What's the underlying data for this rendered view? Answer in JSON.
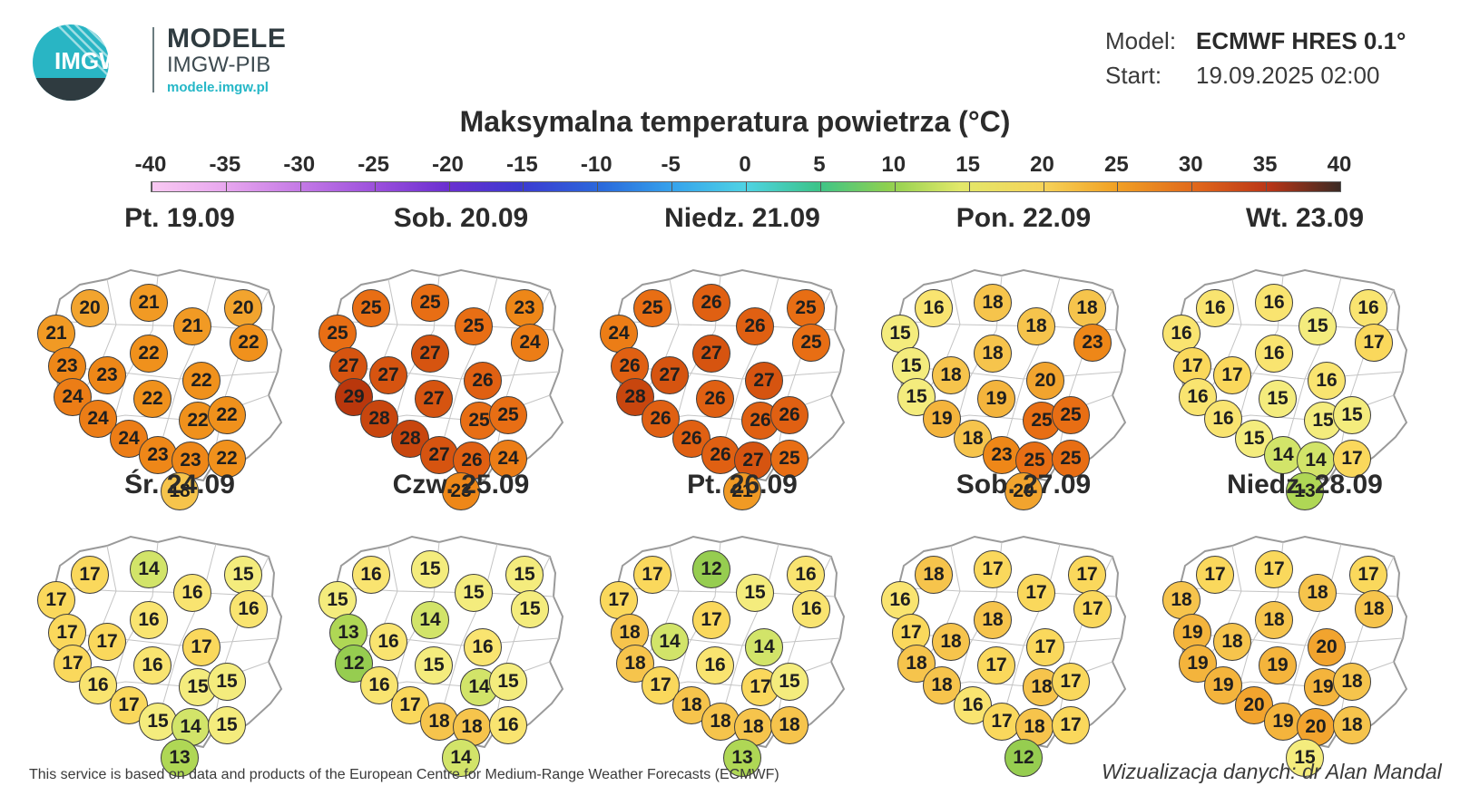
{
  "brand": {
    "logo_text": "IMGW",
    "name": "MODELE",
    "org": "IMGW-PIB",
    "url": "modele.imgw.pl"
  },
  "model_info": {
    "model_label": "Model:",
    "model_value": "ECMWF HRES 0.1°",
    "start_label": "Start:",
    "start_value": "19.09.2025 02:00"
  },
  "title": "Maksymalna temperatura powietrza (°C)",
  "scale": {
    "ticks": [
      "-40",
      "-35",
      "-30",
      "-25",
      "-20",
      "-15",
      "-10",
      "-5",
      "0",
      "5",
      "10",
      "15",
      "20",
      "25",
      "30",
      "35",
      "40"
    ]
  },
  "panels": [
    {
      "day": "Pt. 19.09",
      "values": [
        20,
        21,
        20,
        21,
        21,
        22,
        23,
        23,
        22,
        22,
        24,
        22,
        22,
        24,
        22,
        24,
        23,
        23,
        22,
        18
      ]
    },
    {
      "day": "Sob. 20.09",
      "values": [
        25,
        25,
        23,
        25,
        25,
        24,
        27,
        27,
        27,
        26,
        29,
        27,
        25,
        28,
        25,
        28,
        27,
        26,
        24,
        23
      ]
    },
    {
      "day": "Niedz. 21.09",
      "values": [
        25,
        26,
        25,
        24,
        26,
        25,
        26,
        27,
        27,
        27,
        28,
        26,
        26,
        26,
        26,
        26,
        26,
        27,
        25,
        21
      ]
    },
    {
      "day": "Pon. 22.09",
      "values": [
        16,
        18,
        18,
        15,
        18,
        23,
        15,
        18,
        18,
        20,
        15,
        19,
        25,
        19,
        25,
        18,
        23,
        25,
        25,
        20
      ]
    },
    {
      "day": "Wt. 23.09",
      "values": [
        16,
        16,
        16,
        16,
        15,
        17,
        17,
        17,
        16,
        16,
        16,
        15,
        15,
        16,
        15,
        15,
        14,
        14,
        17,
        13
      ]
    },
    {
      "day": "Śr. 24.09",
      "values": [
        17,
        14,
        15,
        17,
        16,
        16,
        17,
        17,
        16,
        17,
        17,
        16,
        15,
        16,
        15,
        17,
        15,
        14,
        15,
        13
      ]
    },
    {
      "day": "Czw. 25.09",
      "values": [
        16,
        15,
        15,
        15,
        15,
        15,
        13,
        16,
        14,
        16,
        12,
        15,
        14,
        16,
        15,
        17,
        18,
        18,
        16,
        14
      ]
    },
    {
      "day": "Pt. 26.09",
      "values": [
        17,
        12,
        16,
        17,
        15,
        16,
        18,
        14,
        17,
        14,
        18,
        16,
        17,
        17,
        15,
        18,
        18,
        18,
        18,
        13
      ]
    },
    {
      "day": "Sob. 27.09",
      "values": [
        18,
        17,
        17,
        16,
        17,
        17,
        17,
        18,
        18,
        17,
        18,
        17,
        18,
        18,
        17,
        16,
        17,
        18,
        17,
        12
      ]
    },
    {
      "day": "Niedz. 28.09",
      "values": [
        17,
        17,
        17,
        18,
        18,
        18,
        19,
        18,
        18,
        20,
        19,
        19,
        19,
        19,
        18,
        20,
        19,
        20,
        18,
        15
      ]
    }
  ],
  "footer": {
    "source": "This service is based on data and products of the European Centre for Medium-Range Weather Forecasts (ECMWF)",
    "credit": "Wizualizacja danych: dr Alan Mandal"
  }
}
